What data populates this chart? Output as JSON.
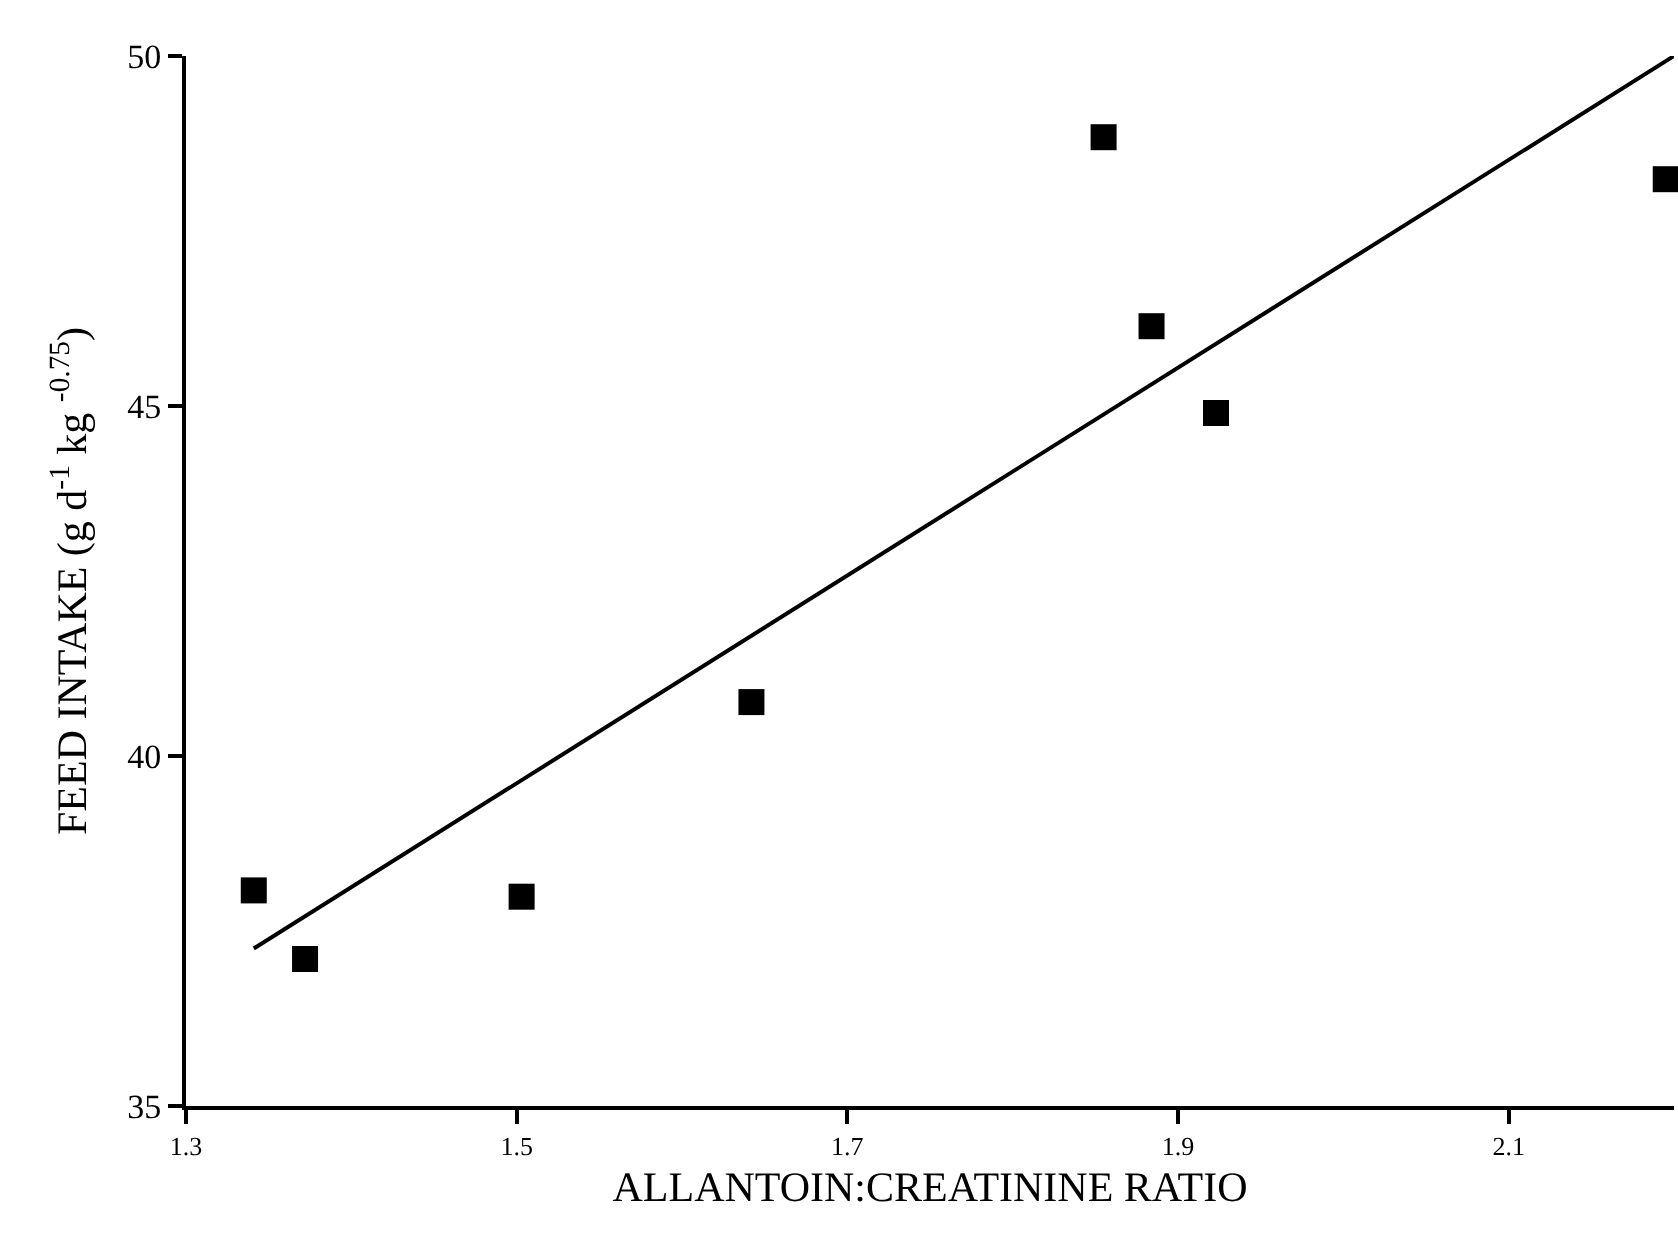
{
  "chart_data": {
    "type": "scatter",
    "xlabel": "ALLANTOIN:CREATININE RATIO",
    "ylabel": "FEED INTAKE (g d$^{-1}$ kg $^{-0.75}$)",
    "series": [
      {
        "color": "#000000",
        "marker": "square",
        "x": [
          1.341,
          1.372,
          1.503,
          1.642,
          1.855,
          1.884,
          1.923,
          2.195
        ],
        "values": [
          38.08,
          37.1,
          37.99,
          40.77,
          48.84,
          46.14,
          44.9,
          48.24
        ]
      },
      {
        "type": "line",
        "color": "#000000",
        "line_style": "solid",
        "x": [
          1.341,
          2.2
        ],
        "values": [
          37.25,
          50.0
        ]
      }
    ],
    "xlim": [
      1.3,
      2.2
    ],
    "xticks": [
      1.3,
      1.5,
      1.7,
      1.9,
      2.1
    ],
    "ylim": [
      35,
      50
    ],
    "yticks": [
      35,
      40,
      45,
      50
    ]
  }
}
